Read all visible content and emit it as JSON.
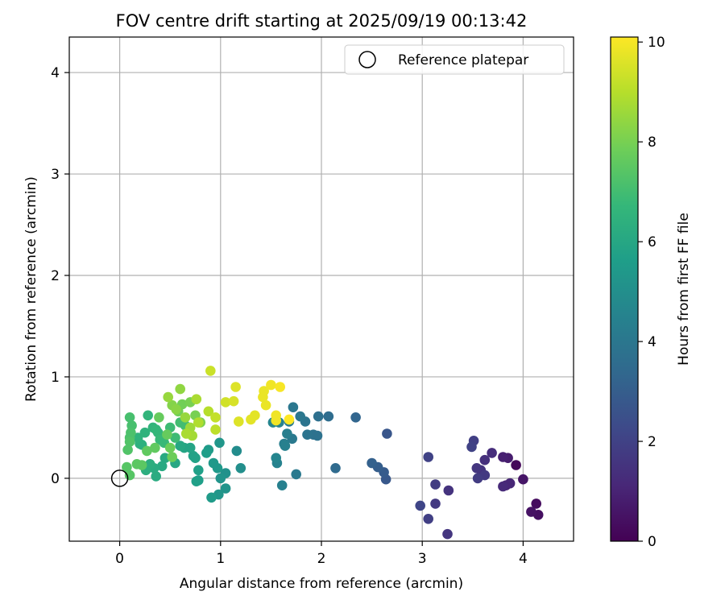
{
  "chart_data": {
    "type": "scatter",
    "title": "FOV centre drift starting at 2025/09/19 00:13:42",
    "xlabel": "Angular distance from reference (arcmin)",
    "ylabel": "Rotation from reference (arcmin)",
    "xlim": [
      -0.5,
      4.5
    ],
    "ylim": [
      -0.62,
      4.35
    ],
    "xticks": [
      "0",
      "1",
      "2",
      "3",
      "4"
    ],
    "yticks": [
      "0",
      "1",
      "2",
      "3",
      "4"
    ],
    "grid": true,
    "legend": {
      "position": "top-right",
      "entries": [
        "Reference platepar"
      ]
    },
    "reference_point": {
      "x": 0,
      "y": 0
    },
    "colorbar": {
      "label": "Hours from first FF file",
      "range": [
        0,
        10.1
      ],
      "ticks": [
        "0",
        "2",
        "4",
        "6",
        "8",
        "10"
      ],
      "colormap": "viridis",
      "stops": [
        "#440154",
        "#482878",
        "#3e4989",
        "#31688e",
        "#26828e",
        "#1f9e89",
        "#35b779",
        "#6ece58",
        "#b5de2b",
        "#fde725"
      ]
    },
    "series": [
      {
        "points": [
          [
            3.93,
            0.13,
            0.2
          ],
          [
            4.13,
            -0.25,
            0.3
          ],
          [
            4.15,
            -0.36,
            0.4
          ],
          [
            4.08,
            -0.33,
            0.5
          ],
          [
            4.0,
            -0.01,
            0.6
          ],
          [
            3.85,
            0.2,
            0.8
          ],
          [
            3.8,
            0.21,
            0.9
          ],
          [
            3.83,
            -0.07,
            1.0
          ],
          [
            3.87,
            -0.05,
            1.1
          ],
          [
            3.8,
            -0.08,
            1.2
          ],
          [
            3.69,
            0.25,
            1.3
          ],
          [
            3.62,
            0.18,
            1.4
          ],
          [
            3.58,
            0.08,
            1.5
          ],
          [
            3.54,
            0.1,
            1.6
          ],
          [
            3.62,
            0.03,
            1.7
          ],
          [
            3.55,
            0.0,
            1.8
          ],
          [
            3.51,
            0.37,
            1.9
          ],
          [
            3.49,
            0.31,
            2.0
          ],
          [
            3.26,
            -0.12,
            1.5
          ],
          [
            3.25,
            -0.55,
            1.6
          ],
          [
            3.13,
            -0.25,
            1.7
          ],
          [
            3.13,
            -0.06,
            1.8
          ],
          [
            3.06,
            -0.4,
            1.9
          ],
          [
            3.06,
            0.21,
            2.0
          ],
          [
            2.98,
            -0.27,
            2.1
          ],
          [
            2.65,
            0.44,
            2.7
          ],
          [
            2.64,
            -0.01,
            2.8
          ],
          [
            2.62,
            0.06,
            2.9
          ],
          [
            2.56,
            0.11,
            3.0
          ],
          [
            2.5,
            0.15,
            3.1
          ],
          [
            2.34,
            0.6,
            3.3
          ],
          [
            2.14,
            0.1,
            3.5
          ],
          [
            2.07,
            0.61,
            3.6
          ],
          [
            1.97,
            0.61,
            3.7
          ],
          [
            1.96,
            0.42,
            3.8
          ],
          [
            1.92,
            0.43,
            3.8
          ],
          [
            1.86,
            0.43,
            3.9
          ],
          [
            1.84,
            0.56,
            3.9
          ],
          [
            1.79,
            0.61,
            4.0
          ],
          [
            1.72,
            0.7,
            4.0
          ],
          [
            1.75,
            0.04,
            4.1
          ],
          [
            1.71,
            0.39,
            4.1
          ],
          [
            1.68,
            0.56,
            4.2
          ],
          [
            1.66,
            0.44,
            4.3
          ],
          [
            1.63,
            0.34,
            4.3
          ],
          [
            1.64,
            0.32,
            4.4
          ],
          [
            1.61,
            -0.07,
            4.4
          ],
          [
            1.58,
            0.55,
            4.5
          ],
          [
            1.56,
            0.15,
            4.5
          ],
          [
            1.55,
            0.2,
            4.6
          ],
          [
            1.52,
            0.55,
            4.6
          ],
          [
            1.16,
            0.27,
            4.9
          ],
          [
            1.2,
            0.1,
            5.0
          ],
          [
            1.05,
            0.05,
            5.1
          ],
          [
            1.05,
            -0.1,
            5.2
          ],
          [
            1.0,
            0.0,
            5.2
          ],
          [
            0.98,
            -0.16,
            5.3
          ],
          [
            0.99,
            0.35,
            5.3
          ],
          [
            0.97,
            0.1,
            5.4
          ],
          [
            0.93,
            0.15,
            5.4
          ],
          [
            0.91,
            -0.19,
            5.5
          ],
          [
            0.88,
            0.28,
            5.5
          ],
          [
            0.86,
            0.25,
            5.6
          ],
          [
            0.78,
            -0.02,
            5.6
          ],
          [
            0.76,
            -0.03,
            5.7
          ],
          [
            0.78,
            0.08,
            5.7
          ],
          [
            0.75,
            0.2,
            5.8
          ],
          [
            0.73,
            0.22,
            5.8
          ],
          [
            0.7,
            0.3,
            5.9
          ],
          [
            0.64,
            0.3,
            5.9
          ],
          [
            0.6,
            0.32,
            6.0
          ],
          [
            0.55,
            0.15,
            6.0
          ],
          [
            0.45,
            0.2,
            6.1
          ],
          [
            0.42,
            0.12,
            6.1
          ],
          [
            0.36,
            0.02,
            6.2
          ],
          [
            0.34,
            0.1,
            6.2
          ],
          [
            0.3,
            0.14,
            6.3
          ],
          [
            0.26,
            0.08,
            6.3
          ],
          [
            0.22,
            0.33,
            6.4
          ],
          [
            0.2,
            0.34,
            6.4
          ],
          [
            0.18,
            0.4,
            6.5
          ],
          [
            0.25,
            0.45,
            6.5
          ],
          [
            0.28,
            0.62,
            6.6
          ],
          [
            0.33,
            0.5,
            6.6
          ],
          [
            0.36,
            0.48,
            6.7
          ],
          [
            0.38,
            0.45,
            6.7
          ],
          [
            0.4,
            0.38,
            6.8
          ],
          [
            0.44,
            0.35,
            6.8
          ],
          [
            0.5,
            0.5,
            6.9
          ],
          [
            0.55,
            0.4,
            6.9
          ],
          [
            0.6,
            0.55,
            7.0
          ],
          [
            0.65,
            0.52,
            7.0
          ],
          [
            0.1,
            0.6,
            7.1
          ],
          [
            0.12,
            0.52,
            7.1
          ],
          [
            0.11,
            0.45,
            7.2
          ],
          [
            0.1,
            0.4,
            7.2
          ],
          [
            0.1,
            0.36,
            7.3
          ],
          [
            0.08,
            0.28,
            7.3
          ],
          [
            0.1,
            0.03,
            7.4
          ],
          [
            0.07,
            0.11,
            7.4
          ],
          [
            0.17,
            0.14,
            7.5
          ],
          [
            0.22,
            0.13,
            7.5
          ],
          [
            0.27,
            0.27,
            7.6
          ],
          [
            0.35,
            0.3,
            7.6
          ],
          [
            0.39,
            0.6,
            7.7
          ],
          [
            0.47,
            0.43,
            7.7
          ],
          [
            0.5,
            0.3,
            7.8
          ],
          [
            0.52,
            0.21,
            7.8
          ],
          [
            0.58,
            0.66,
            7.9
          ],
          [
            0.62,
            0.73,
            7.9
          ],
          [
            0.7,
            0.75,
            8.0
          ],
          [
            0.75,
            0.62,
            8.0
          ],
          [
            0.8,
            0.55,
            8.1
          ],
          [
            0.52,
            0.72,
            8.2
          ],
          [
            0.56,
            0.68,
            8.3
          ],
          [
            0.6,
            0.88,
            8.4
          ],
          [
            0.65,
            0.6,
            8.5
          ],
          [
            0.48,
            0.8,
            8.5
          ],
          [
            0.7,
            0.5,
            8.6
          ],
          [
            0.72,
            0.42,
            8.7
          ],
          [
            0.76,
            0.78,
            8.8
          ],
          [
            0.66,
            0.44,
            8.8
          ],
          [
            0.78,
            0.55,
            8.9
          ],
          [
            0.88,
            0.66,
            9.0
          ],
          [
            0.95,
            0.48,
            9.1
          ],
          [
            0.95,
            0.6,
            9.2
          ],
          [
            0.9,
            1.06,
            9.3
          ],
          [
            1.05,
            0.75,
            9.4
          ],
          [
            1.13,
            0.76,
            9.5
          ],
          [
            1.15,
            0.9,
            9.6
          ],
          [
            1.18,
            0.56,
            9.6
          ],
          [
            1.3,
            0.58,
            9.7
          ],
          [
            1.34,
            0.62,
            9.7
          ],
          [
            1.42,
            0.8,
            9.8
          ],
          [
            1.43,
            0.86,
            9.8
          ],
          [
            1.45,
            0.72,
            9.8
          ],
          [
            1.5,
            0.92,
            9.9
          ],
          [
            1.55,
            0.62,
            9.9
          ],
          [
            1.55,
            0.57,
            9.9
          ],
          [
            1.59,
            0.9,
            10.0
          ],
          [
            1.68,
            0.58,
            10.1
          ]
        ]
      }
    ]
  }
}
